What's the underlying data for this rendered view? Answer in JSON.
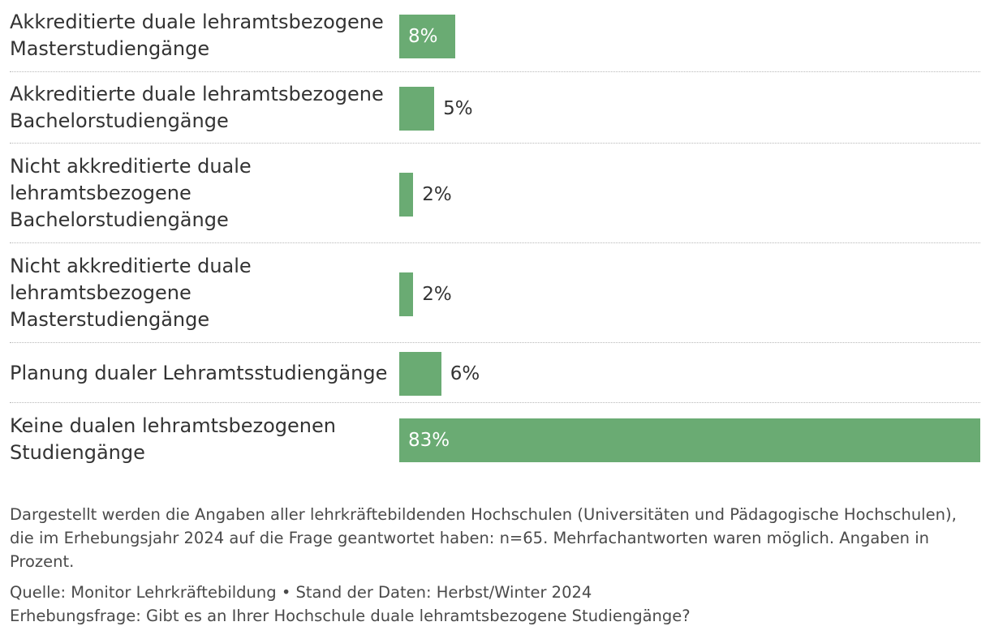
{
  "chart_data": {
    "type": "bar",
    "orientation": "horizontal",
    "categories": [
      "Akkreditierte duale lehramtsbezogene\nMasterstudiengänge",
      "Akkreditierte duale lehramtsbezogene\nBachelorstudiengänge",
      "Nicht akkreditierte duale\nlehramtsbezogene\nBachelorstudiengänge",
      "Nicht akkreditierte duale\nlehramtsbezogene\nMasterstudiengänge",
      "Planung dualer Lehramtsstudiengänge",
      "Keine dualen lehramtsbezogenen\nStudiengänge"
    ],
    "values": [
      8,
      5,
      2,
      2,
      6,
      83
    ],
    "value_labels": [
      "8%",
      "5%",
      "2%",
      "2%",
      "6%",
      "83%"
    ],
    "xlim": [
      0,
      83
    ],
    "unit": "%",
    "bar_color": "#6aab73",
    "label_inside_color": "#ffffff",
    "label_outside_color": "#333333",
    "grid": false
  },
  "notes": {
    "text": "Dargestellt werden die Angaben aller lehrkräftebildenden Hochschulen (Universitäten und Pädagogische Hochschulen), die im Erhebungsjahr 2024 auf die Frage geantwortet haben: n=65. Mehrfachantworten waren möglich. Angaben in Prozent.",
    "source": "Quelle: Monitor Lehrkräftebildung • Stand der Daten: Herbst/Winter 2024",
    "question": "Erhebungsfrage: Gibt es an Ihrer Hochschule duale lehramtsbezogene Studiengänge?"
  }
}
